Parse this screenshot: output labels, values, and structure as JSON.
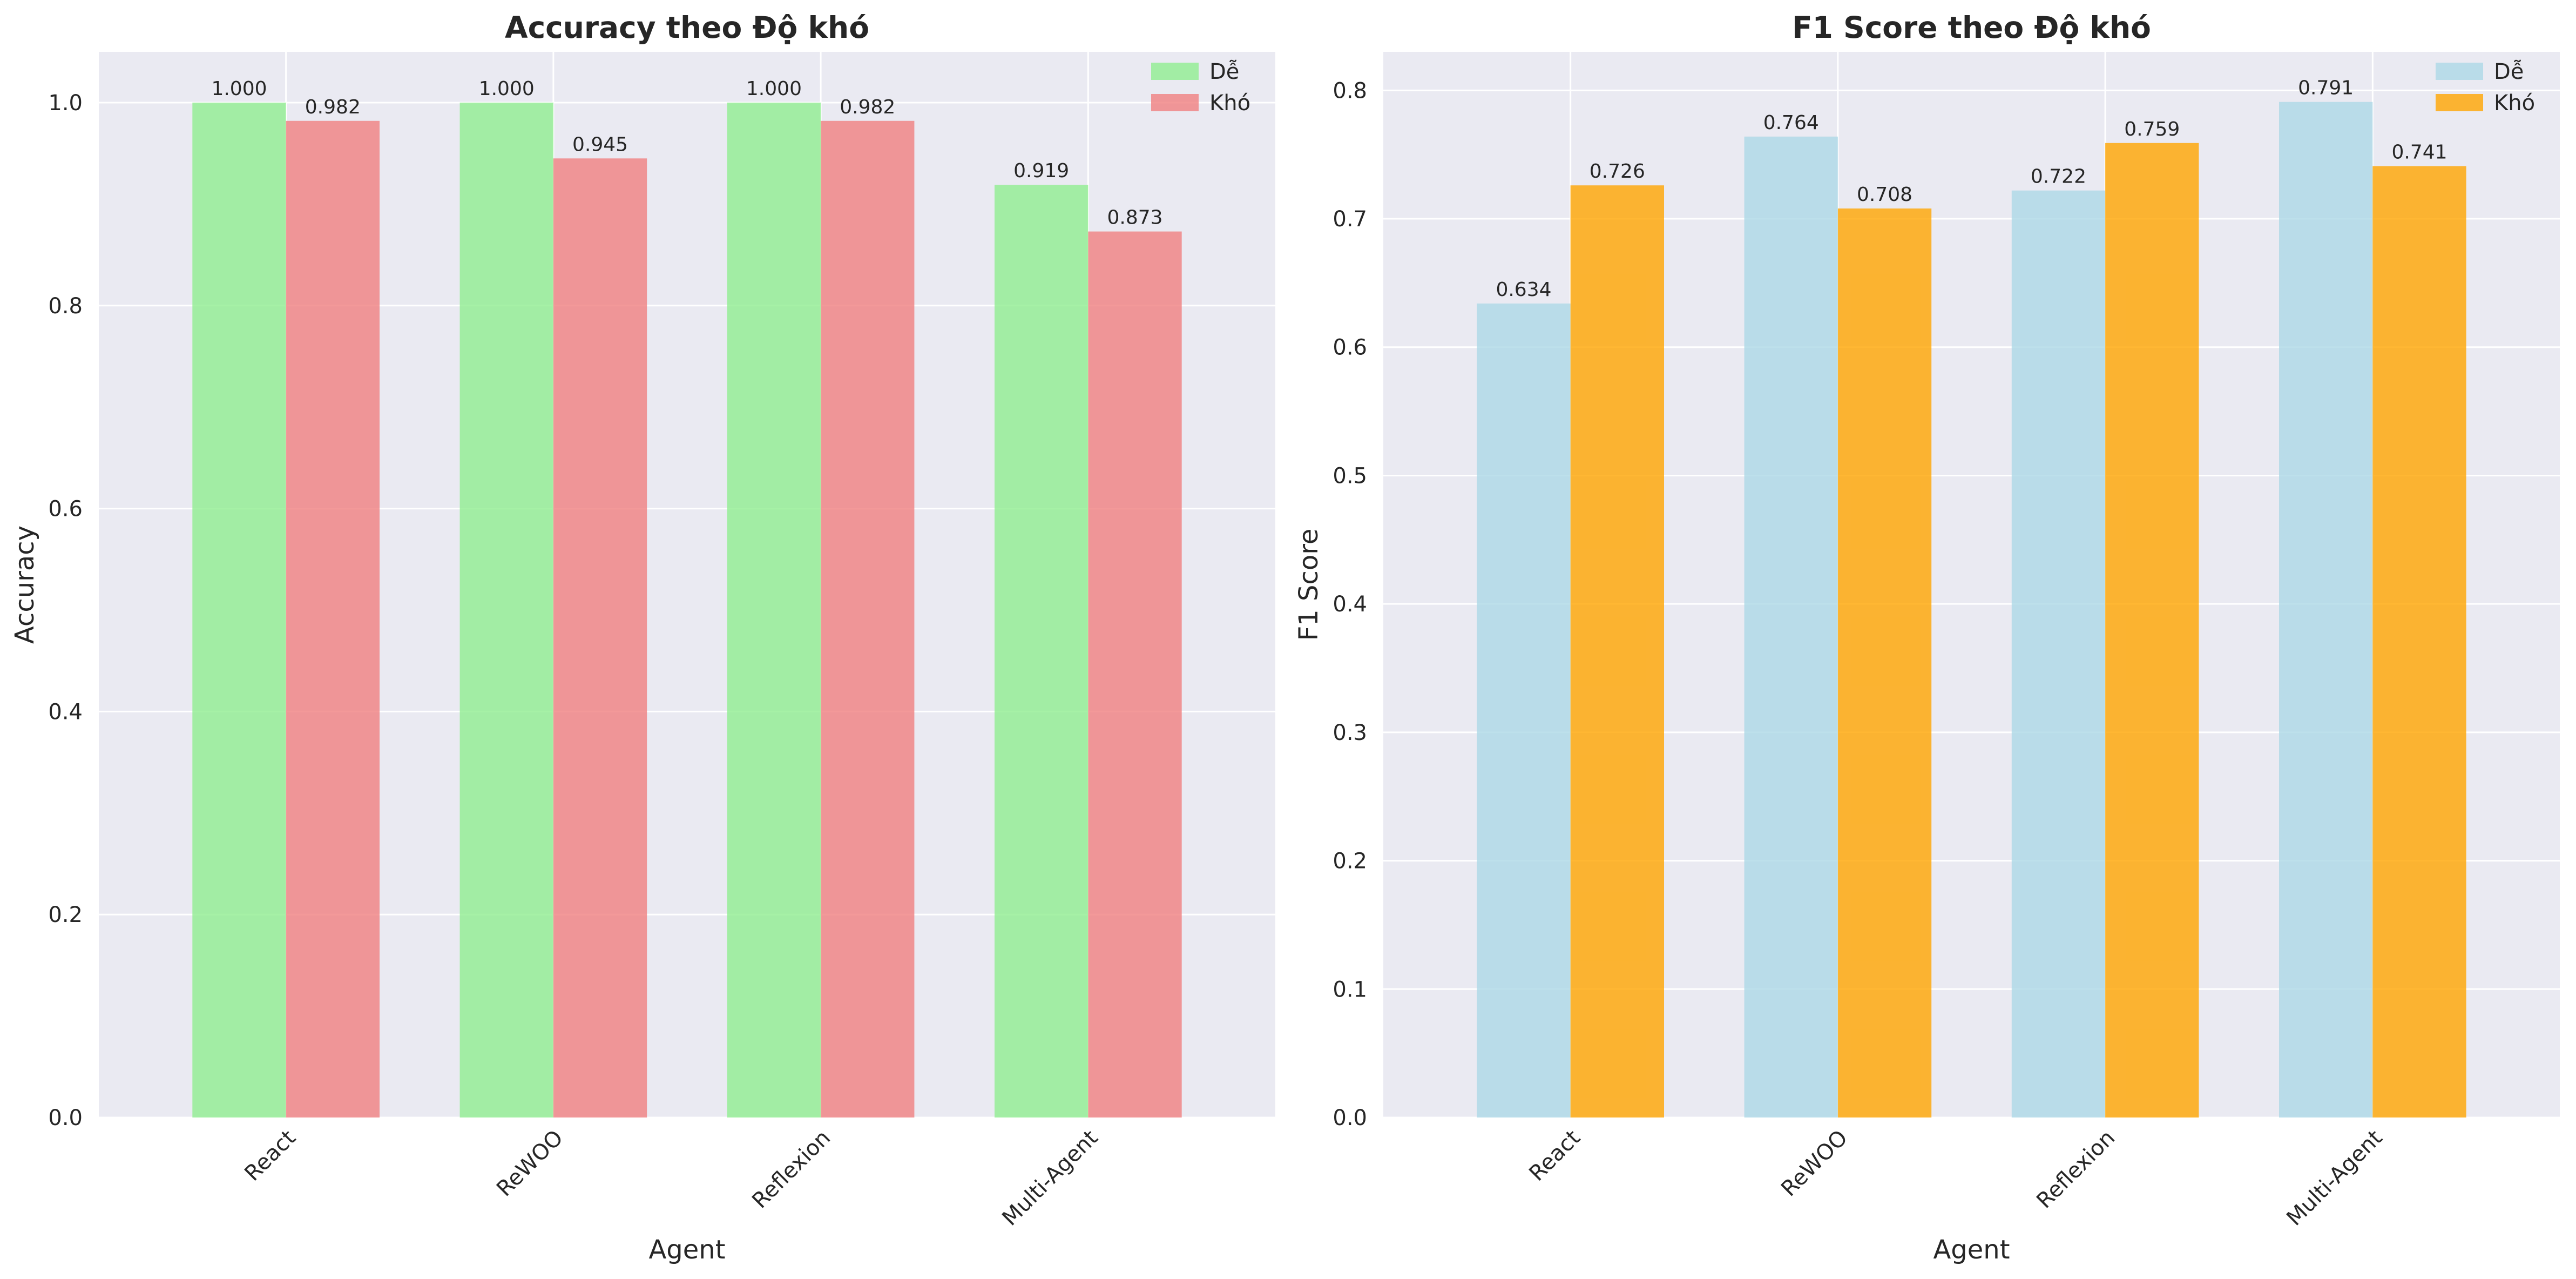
{
  "chart_data": [
    {
      "type": "bar",
      "title": "Accuracy theo Độ khó",
      "xlabel": "Agent",
      "ylabel": "Accuracy",
      "categories": [
        "React",
        "ReWOO",
        "Reflexion",
        "Multi-Agent"
      ],
      "series": [
        {
          "name": "Dễ",
          "color": "#90ee90",
          "values": [
            1.0,
            1.0,
            1.0,
            0.919
          ],
          "labels": [
            "1.000",
            "1.000",
            "1.000",
            "0.919"
          ]
        },
        {
          "name": "Khó",
          "color": "#f08080",
          "values": [
            0.982,
            0.945,
            0.982,
            0.873
          ],
          "labels": [
            "0.982",
            "0.945",
            "0.982",
            "0.873"
          ]
        }
      ],
      "ylim": [
        0,
        1.05
      ],
      "yticks": [
        0.0,
        0.2,
        0.4,
        0.6,
        0.8,
        1.0
      ],
      "ytick_labels": [
        "0.0",
        "0.2",
        "0.4",
        "0.6",
        "0.8",
        "1.0"
      ],
      "grid": true,
      "legend_position": "top-right"
    },
    {
      "type": "bar",
      "title": "F1 Score theo Độ khó",
      "xlabel": "Agent",
      "ylabel": "F1 Score",
      "categories": [
        "React",
        "ReWOO",
        "Reflexion",
        "Multi-Agent"
      ],
      "series": [
        {
          "name": "Dễ",
          "color": "#add8e6",
          "values": [
            0.634,
            0.764,
            0.722,
            0.791
          ],
          "labels": [
            "0.634",
            "0.764",
            "0.722",
            "0.791"
          ]
        },
        {
          "name": "Khó",
          "color": "#ffa500",
          "values": [
            0.726,
            0.708,
            0.759,
            0.741
          ],
          "labels": [
            "0.726",
            "0.708",
            "0.759",
            "0.741"
          ]
        }
      ],
      "ylim": [
        0,
        0.83
      ],
      "yticks": [
        0.0,
        0.1,
        0.2,
        0.3,
        0.4,
        0.5,
        0.6,
        0.7,
        0.8
      ],
      "ytick_labels": [
        "0.0",
        "0.1",
        "0.2",
        "0.3",
        "0.4",
        "0.5",
        "0.6",
        "0.7",
        "0.8"
      ],
      "grid": true,
      "legend_position": "top-right"
    }
  ]
}
